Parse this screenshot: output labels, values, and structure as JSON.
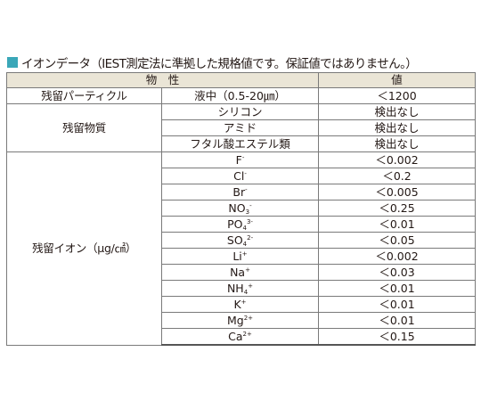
{
  "heading": {
    "square_color": "#3aa7b8",
    "text": "イオンデータ（IEST測定法に準拠した規格値です。保証値ではありません。）"
  },
  "table": {
    "header": {
      "property": "物　性",
      "value": "値"
    },
    "particle": {
      "label": "残留パーティクル",
      "item": "液中（0.5-20㎛）",
      "value": "＜1200"
    },
    "substances": {
      "label": "残留物質",
      "rows": [
        {
          "item": "シリコン",
          "value": "検出なし"
        },
        {
          "item": "アミド",
          "value": "検出なし"
        },
        {
          "item": "フタル酸エステル類",
          "value": "検出なし"
        }
      ]
    },
    "ions": {
      "label": "残留イオン（μg/㎠）",
      "rows": [
        {
          "base": "F",
          "sub": "",
          "sup": "-",
          "value": "＜0.002"
        },
        {
          "base": "Cl",
          "sub": "",
          "sup": "-",
          "value": "＜0.2"
        },
        {
          "base": "Br",
          "sub": "",
          "sup": "-",
          "value": "＜0.005"
        },
        {
          "base": "NO",
          "sub": "3",
          "sup": "-",
          "value": "＜0.25"
        },
        {
          "base": "PO",
          "sub": "4",
          "sup": "3-",
          "value": "＜0.01"
        },
        {
          "base": "SO",
          "sub": "4",
          "sup": "2-",
          "value": "＜0.05"
        },
        {
          "base": "Li",
          "sub": "",
          "sup": "+",
          "value": "＜0.002"
        },
        {
          "base": "Na",
          "sub": "",
          "sup": "+",
          "value": "＜0.03"
        },
        {
          "base": "NH",
          "sub": "4",
          "sup": "+",
          "value": "＜0.01"
        },
        {
          "base": "K",
          "sub": "",
          "sup": "+",
          "value": "＜0.01"
        },
        {
          "base": "Mg",
          "sub": "",
          "sup": "2+",
          "value": "＜0.01"
        },
        {
          "base": "Ca",
          "sub": "",
          "sup": "2+",
          "value": "＜0.15"
        }
      ]
    }
  }
}
